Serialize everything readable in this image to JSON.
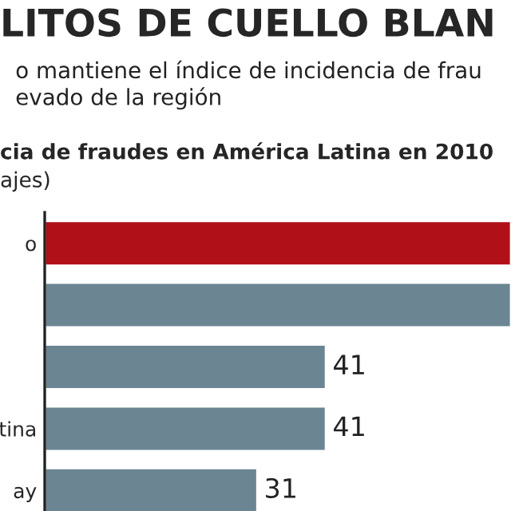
{
  "chart_data": {
    "type": "bar",
    "orientation": "horizontal",
    "title": "LITOS DE CUELLO BLAN",
    "subtitle": "o mantiene el índice de incidencia de frau\nevado de la región",
    "annotations": [
      "cia de fraudes en América Latina en 2010",
      "ajes)"
    ],
    "categories": [
      "o",
      null,
      null,
      "tina",
      "ay"
    ],
    "values": [
      68,
      68,
      41,
      41,
      31
    ],
    "colors": [
      "#b01018",
      "#6b8592",
      "#6b8592",
      "#6b8592",
      "#6b8592"
    ],
    "value_labels": [
      null,
      null,
      "41",
      "41",
      "31"
    ],
    "xlim": [
      0,
      68
    ],
    "tick_labels": "y",
    "grid": false,
    "legend": false
  }
}
